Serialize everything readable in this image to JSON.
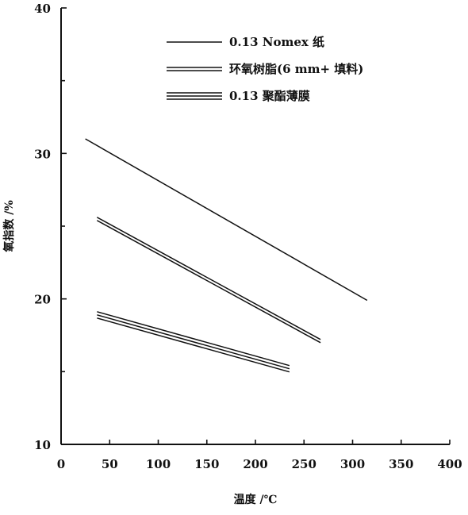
{
  "chart_data": {
    "type": "line",
    "xlabel": "温度 /℃",
    "ylabel": "氧指数 /%",
    "xlim": [
      0,
      400
    ],
    "ylim": [
      10,
      40
    ],
    "xticks": [
      0,
      50,
      100,
      150,
      200,
      250,
      300,
      350,
      400
    ],
    "yticks_labeled": [
      10,
      20,
      30,
      40
    ],
    "yticks_minor": [
      15,
      25,
      35
    ],
    "grid": false,
    "legend_position": "top-right",
    "series": [
      {
        "name": "0.13 Nomex 纸",
        "line_count": 1,
        "x": [
          25,
          315
        ],
        "y": [
          31.0,
          19.9
        ]
      },
      {
        "name": "环氧树脂(6 mm+ 填料)",
        "line_count": 2,
        "x": [
          37,
          267
        ],
        "y": [
          25.5,
          17.1
        ]
      },
      {
        "name": "0.13 聚酯薄膜",
        "line_count": 3,
        "x": [
          37,
          235
        ],
        "y": [
          18.9,
          15.2
        ]
      }
    ],
    "color": "#111111"
  }
}
